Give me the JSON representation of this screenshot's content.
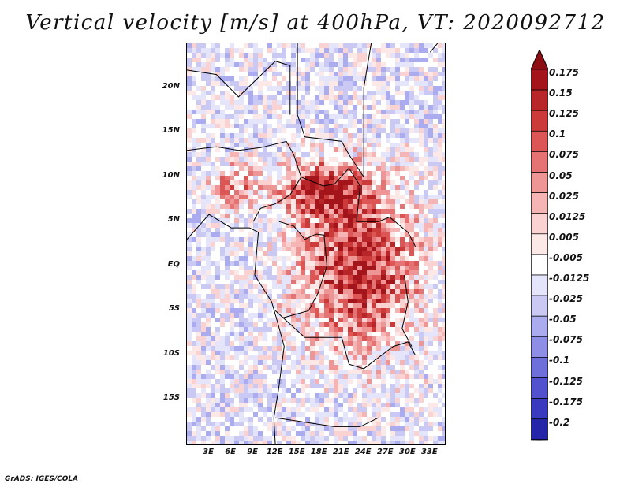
{
  "title": "Vertical velocity [m/s] at 400hPa, VT: 2020092712",
  "credit": "GrADS: IGES/COLA",
  "map": {
    "variable": "Vertical velocity",
    "units": "m/s",
    "level": "400hPa",
    "valid_time": "2020092712",
    "lon_range": [
      0,
      35
    ],
    "lat_range": [
      -20,
      25
    ],
    "lat_ticks": [
      {
        "value": 20,
        "label": "20N"
      },
      {
        "value": 15,
        "label": "15N"
      },
      {
        "value": 10,
        "label": "10N"
      },
      {
        "value": 5,
        "label": "5N"
      },
      {
        "value": 0,
        "label": "EQ"
      },
      {
        "value": -5,
        "label": "5S"
      },
      {
        "value": -10,
        "label": "10S"
      },
      {
        "value": -15,
        "label": "15S"
      }
    ],
    "lon_ticks": [
      {
        "value": 3,
        "label": "3E"
      },
      {
        "value": 6,
        "label": "6E"
      },
      {
        "value": 9,
        "label": "9E"
      },
      {
        "value": 12,
        "label": "12E"
      },
      {
        "value": 15,
        "label": "15E"
      },
      {
        "value": 18,
        "label": "18E"
      },
      {
        "value": 21,
        "label": "21E"
      },
      {
        "value": 24,
        "label": "24E"
      },
      {
        "value": 27,
        "label": "27E"
      },
      {
        "value": 30,
        "label": "30E"
      },
      {
        "value": 33,
        "label": "33E"
      }
    ]
  },
  "colorbar": {
    "levels": [
      {
        "label": "0.175",
        "color": "#a3151b"
      },
      {
        "label": "0.15",
        "color": "#b8262a"
      },
      {
        "label": "0.125",
        "color": "#cc3a3a"
      },
      {
        "label": "0.1",
        "color": "#dc5656"
      },
      {
        "label": "0.075",
        "color": "#e57373"
      },
      {
        "label": "0.05",
        "color": "#ee9696"
      },
      {
        "label": "0.025",
        "color": "#f5b5b5"
      },
      {
        "label": "0.0125",
        "color": "#fad2d2"
      },
      {
        "label": "0.005",
        "color": "#fde8e8"
      },
      {
        "label": "-0.005",
        "color": "#ffffff"
      },
      {
        "label": "-0.0125",
        "color": "#e4e4fa"
      },
      {
        "label": "-0.025",
        "color": "#c9c9f4"
      },
      {
        "label": "-0.05",
        "color": "#ababef"
      },
      {
        "label": "-0.075",
        "color": "#8e8ee6"
      },
      {
        "label": "-0.1",
        "color": "#6f6fdc"
      },
      {
        "label": "-0.125",
        "color": "#5252cf"
      },
      {
        "label": "-0.175",
        "color": "#3a3ac0"
      },
      {
        "label": "-0.2",
        "color": "#2525aa"
      }
    ],
    "top_color": "#8e0f13",
    "bottom_color": "#1a1a8c"
  }
}
